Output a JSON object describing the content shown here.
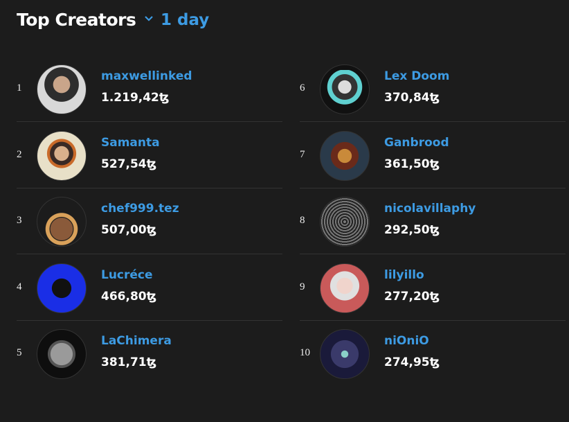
{
  "header": {
    "title": "Top Creators",
    "period": "1 day"
  },
  "creators": [
    {
      "rank": 1,
      "name": "maxwellinked",
      "amount": "1.219,42ꜩ"
    },
    {
      "rank": 2,
      "name": "Samanta",
      "amount": "527,54ꜩ"
    },
    {
      "rank": 3,
      "name": "chef999.tez",
      "amount": "507,00ꜩ"
    },
    {
      "rank": 4,
      "name": "Lucréce",
      "amount": "466,80ꜩ"
    },
    {
      "rank": 5,
      "name": "LaChimera",
      "amount": "381,71ꜩ"
    },
    {
      "rank": 6,
      "name": "Lex Doom",
      "amount": "370,84ꜩ"
    },
    {
      "rank": 7,
      "name": "Ganbrood",
      "amount": "361,50ꜩ"
    },
    {
      "rank": 8,
      "name": "nicolavillaphy",
      "amount": "292,50ꜩ"
    },
    {
      "rank": 9,
      "name": "lilyillo",
      "amount": "277,20ꜩ"
    },
    {
      "rank": 10,
      "name": "niOniO",
      "amount": "274,95ꜩ"
    }
  ]
}
